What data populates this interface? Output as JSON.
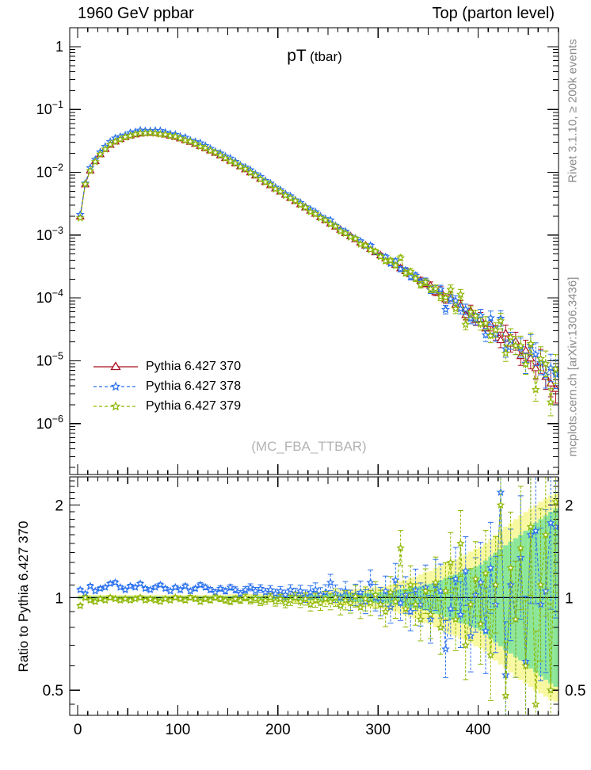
{
  "header": {
    "left": "1960 GeV ppbar",
    "right": "Top (parton level)"
  },
  "panel_title": {
    "main": "pT",
    "sub": "(tbar)"
  },
  "watermark": "(MC_FBA_TTBAR)",
  "side_notes": {
    "top": "Rivet 3.1.10, ≥ 200k events",
    "bottom": "mcplots.cern.ch [arXiv:1306.3436]"
  },
  "ratio_ylabel": "Ratio to Pythia 6.427 370",
  "colors": {
    "red": "#aa1122",
    "blue": "#2970ee",
    "green": "#8db600",
    "band_yellow": "#f8f8a0",
    "band_green": "#8ce69a",
    "frame": "#000000",
    "gray_text": "#8c8c8c",
    "watermark": "#b3b3b3"
  },
  "legend": [
    {
      "label": "Pythia 6.427 370",
      "color": "#aa1122",
      "marker": "triangle",
      "dash": false
    },
    {
      "label": "Pythia 6.427 378",
      "color": "#2970ee",
      "marker": "star",
      "dash": true
    },
    {
      "label": "Pythia 6.427 379",
      "color": "#8db600",
      "marker": "star",
      "dash": true
    }
  ],
  "chart_data": {
    "type": "line",
    "title": "pT (tbar)",
    "xlabel": "",
    "ylabel": "",
    "panels": [
      "spectrum-log",
      "ratio-log"
    ],
    "legend_position": "inside-left",
    "grid": false,
    "xlim": [
      -8,
      480.3
    ],
    "x_axis": {
      "major_ticks": [
        0,
        100,
        200,
        300,
        400
      ],
      "medium_step": 50,
      "minor_step": 10
    },
    "main_y_axis": {
      "scale": "log",
      "lim": [
        1.55e-07,
        2.0
      ],
      "decade_labels": [
        0,
        -1,
        -2,
        -3,
        -4,
        -5,
        -6
      ]
    },
    "ratio_y_axis": {
      "scale": "log",
      "lim": [
        0.414,
        2.47
      ],
      "labeled_ticks": [
        2,
        1,
        0.5
      ],
      "minor_ticks": [
        0.45,
        0.6,
        0.7,
        0.8,
        0.9,
        1.1,
        1.2,
        1.3,
        1.4,
        1.5,
        1.6,
        1.7,
        1.8,
        1.9,
        2.1,
        2.2,
        2.3,
        2.4
      ]
    },
    "bin_width": 5,
    "x": [
      2.5,
      7.5,
      12.5,
      17.5,
      22.5,
      27.5,
      32.5,
      37.5,
      42.5,
      47.5,
      52.5,
      57.5,
      62.5,
      67.5,
      72.5,
      77.5,
      82.5,
      87.5,
      92.5,
      97.5,
      102.5,
      107.5,
      112.5,
      117.5,
      122.5,
      127.5,
      132.5,
      137.5,
      142.5,
      147.5,
      152.5,
      157.5,
      162.5,
      167.5,
      172.5,
      177.5,
      182.5,
      187.5,
      192.5,
      197.5,
      202.5,
      207.5,
      212.5,
      217.5,
      222.5,
      227.5,
      232.5,
      237.5,
      242.5,
      247.5,
      252.5,
      257.5,
      262.5,
      267.5,
      272.5,
      277.5,
      282.5,
      287.5,
      292.5,
      297.5,
      302.5,
      307.5,
      312.5,
      317.5,
      322.5,
      327.5,
      332.5,
      337.5,
      342.5,
      347.5,
      352.5,
      357.5,
      362.5,
      367.5,
      372.5,
      377.5,
      382.5,
      387.5,
      392.5,
      397.5,
      402.5,
      407.5,
      412.5,
      417.5,
      422.5,
      427.5,
      432.5,
      437.5,
      442.5,
      447.5,
      452.5,
      457.5,
      462.5,
      467.5,
      472.5,
      477.5
    ],
    "series": [
      {
        "name": "Pythia 6.427 370",
        "role": "reference",
        "values": [
          0.002,
          0.0065,
          0.0108,
          0.0152,
          0.0196,
          0.0238,
          0.0277,
          0.0312,
          0.0342,
          0.0368,
          0.039,
          0.0407,
          0.0419,
          0.0427,
          0.043,
          0.0426,
          0.0417,
          0.0404,
          0.0388,
          0.037,
          0.035,
          0.0329,
          0.0308,
          0.0287,
          0.0266,
          0.0245,
          0.0225,
          0.0206,
          0.0188,
          0.0171,
          0.0155,
          0.014,
          0.0126,
          0.0113,
          0.0101,
          0.009,
          0.008,
          0.0071,
          0.0063,
          0.0056,
          0.005,
          0.00445,
          0.00396,
          0.00352,
          0.00313,
          0.00279,
          0.00248,
          0.00221,
          0.00196,
          0.00175,
          0.00155,
          0.00138,
          0.00123,
          0.00109,
          0.00097,
          0.00087,
          0.00077,
          0.00069,
          0.00061,
          0.00054,
          0.00048,
          0.00043,
          0.00038,
          0.00034,
          0.0003,
          0.00027,
          0.00024,
          0.000215,
          0.00019,
          0.00017,
          0.000158,
          0.000125,
          0.000131,
          9.6e-05,
          0.000105,
          7.9e-05,
          7.6e-05,
          5.4e-05,
          6.3e-05,
          4.5e-05,
          4.7e-05,
          3.3e-05,
          3.85e-05,
          2.8e-05,
          2.15e-05,
          2.75e-05,
          1.89e-05,
          2.05e-05,
          1.2e-05,
          1.47e-05,
          1.1e-05,
          7.7e-06,
          9.8e-06,
          5.6e-06,
          4.4e-06,
          3.6e-06
        ]
      },
      {
        "name": "Pythia 6.427 378",
        "role": "ratio-to-reference",
        "ratio": [
          1.06,
          1.03,
          1.09,
          1.05,
          1.07,
          1.08,
          1.11,
          1.12,
          1.08,
          1.06,
          1.09,
          1.08,
          1.11,
          1.07,
          1.06,
          1.08,
          1.1,
          1.07,
          1.05,
          1.08,
          1.06,
          1.09,
          1.05,
          1.07,
          1.1,
          1.08,
          1.06,
          1.04,
          1.07,
          1.05,
          1.08,
          1.06,
          1.03,
          1.06,
          1.08,
          1.05,
          1.07,
          1.04,
          1.06,
          1.03,
          1.05,
          1.02,
          1.06,
          1.03,
          1.05,
          1.01,
          1.04,
          1.06,
          1.02,
          1.04,
          1.12,
          1.03,
          1.0,
          1.05,
          0.98,
          1.02,
          1.04,
          0.97,
          1.12,
          1.0,
          0.97,
          1.05,
          0.93,
          1.14,
          0.96,
          1.02,
          0.9,
          1.06,
          0.95,
          1.08,
          0.85,
          1.1,
          1.05,
          0.68,
          0.92,
          1.15,
          0.88,
          1.22,
          0.75,
          1.02,
          1.12,
          0.78,
          1.25,
          0.95,
          2.2,
          0.56,
          1.1,
          0.85,
          1.35,
          0.62,
          1.6,
          1.65,
          0.95,
          1.05,
          1.75,
          1.7
        ]
      },
      {
        "name": "Pythia 6.427 379",
        "role": "ratio-to-reference",
        "ratio": [
          0.94,
          1.0,
          0.98,
          0.97,
          0.99,
          0.98,
          1.0,
          0.99,
          0.98,
          0.99,
          0.98,
          0.99,
          1.0,
          0.98,
          0.99,
          0.98,
          0.97,
          0.99,
          0.98,
          1.0,
          0.99,
          0.98,
          1.0,
          0.99,
          0.97,
          0.99,
          0.98,
          1.0,
          0.99,
          0.98,
          0.97,
          0.99,
          0.98,
          1.0,
          0.98,
          0.99,
          0.97,
          0.98,
          1.0,
          0.97,
          0.99,
          0.96,
          0.98,
          1.0,
          0.97,
          0.99,
          0.95,
          0.98,
          0.96,
          0.99,
          0.97,
          1.0,
          0.94,
          0.98,
          0.96,
          1.01,
          0.93,
          0.99,
          0.96,
          1.02,
          0.95,
          0.9,
          1.04,
          0.97,
          1.45,
          0.92,
          1.1,
          0.95,
          0.85,
          1.05,
          0.88,
          1.12,
          0.8,
          1.05,
          1.3,
          0.85,
          1.5,
          0.7,
          0.95,
          1.15,
          0.82,
          1.2,
          0.65,
          1.1,
          2.0,
          0.48,
          1.25,
          0.85,
          1.45,
          0.6,
          1.7,
          0.45,
          1.1,
          1.6,
          0.5,
          2.05
        ]
      }
    ],
    "err_pct": [
      1,
      1,
      1,
      1,
      1,
      1,
      1,
      1,
      1,
      1,
      1,
      1,
      1,
      1,
      1,
      1,
      1,
      1,
      1,
      1,
      1.2,
      1.2,
      1.2,
      1.2,
      1.2,
      1.3,
      1.3,
      1.4,
      1.4,
      1.5,
      1.5,
      1.6,
      1.7,
      1.8,
      1.9,
      2,
      2.1,
      2.2,
      2.3,
      2.4,
      2.5,
      2.6,
      2.8,
      3,
      3.2,
      3.4,
      3.6,
      3.8,
      4,
      4.2,
      4.5,
      4.8,
      5,
      5.3,
      5.6,
      6,
      6.3,
      6.7,
      7,
      7.5,
      8,
      8.5,
      9,
      9.5,
      10,
      10.5,
      11,
      12,
      12.5,
      13,
      14,
      15,
      16,
      17,
      18,
      19,
      20,
      21,
      22,
      23,
      25,
      27,
      29,
      31,
      33,
      35,
      37,
      39,
      42,
      45,
      48,
      52,
      55,
      60,
      65,
      70
    ],
    "bands": {
      "description": "MC statistical uncertainty bands around ratio=1, multiplicative half-width factors per bin",
      "yellow": [
        1.02,
        1.02,
        1.02,
        1.02,
        1.02,
        1.02,
        1.02,
        1.02,
        1.02,
        1.02,
        1.02,
        1.02,
        1.02,
        1.02,
        1.02,
        1.02,
        1.02,
        1.02,
        1.02,
        1.02,
        1.02,
        1.02,
        1.02,
        1.02,
        1.02,
        1.02,
        1.02,
        1.02,
        1.02,
        1.02,
        1.025,
        1.025,
        1.026,
        1.026,
        1.027,
        1.027,
        1.028,
        1.028,
        1.029,
        1.03,
        1.032,
        1.034,
        1.036,
        1.038,
        1.04,
        1.042,
        1.044,
        1.046,
        1.048,
        1.05,
        1.053,
        1.056,
        1.059,
        1.062,
        1.065,
        1.068,
        1.071,
        1.074,
        1.077,
        1.08,
        1.085,
        1.09,
        1.1,
        1.11,
        1.13,
        1.14,
        1.16,
        1.17,
        1.19,
        1.21,
        1.22,
        1.25,
        1.27,
        1.3,
        1.32,
        1.33,
        1.36,
        1.38,
        1.41,
        1.44,
        1.46,
        1.5,
        1.55,
        1.6,
        1.65,
        1.7,
        1.75,
        1.8,
        1.85,
        1.9,
        1.95,
        2.0,
        2.05,
        2.1,
        2.15,
        2.18
      ],
      "green": [
        1.01,
        1.01,
        1.01,
        1.01,
        1.01,
        1.01,
        1.01,
        1.01,
        1.01,
        1.01,
        1.01,
        1.01,
        1.01,
        1.01,
        1.01,
        1.01,
        1.01,
        1.01,
        1.01,
        1.01,
        1.01,
        1.01,
        1.01,
        1.01,
        1.01,
        1.01,
        1.01,
        1.01,
        1.01,
        1.01,
        1.012,
        1.012,
        1.012,
        1.012,
        1.012,
        1.012,
        1.012,
        1.012,
        1.012,
        1.012,
        1.016,
        1.017,
        1.018,
        1.019,
        1.02,
        1.021,
        1.022,
        1.023,
        1.024,
        1.025,
        1.027,
        1.028,
        1.03,
        1.031,
        1.033,
        1.034,
        1.036,
        1.037,
        1.039,
        1.04,
        1.042,
        1.045,
        1.05,
        1.055,
        1.065,
        1.07,
        1.08,
        1.085,
        1.09,
        1.1,
        1.11,
        1.13,
        1.14,
        1.16,
        1.18,
        1.19,
        1.21,
        1.22,
        1.24,
        1.26,
        1.28,
        1.32,
        1.36,
        1.4,
        1.44,
        1.48,
        1.52,
        1.56,
        1.6,
        1.65,
        1.7,
        1.75,
        1.8,
        1.85,
        1.9,
        1.95
      ]
    }
  }
}
